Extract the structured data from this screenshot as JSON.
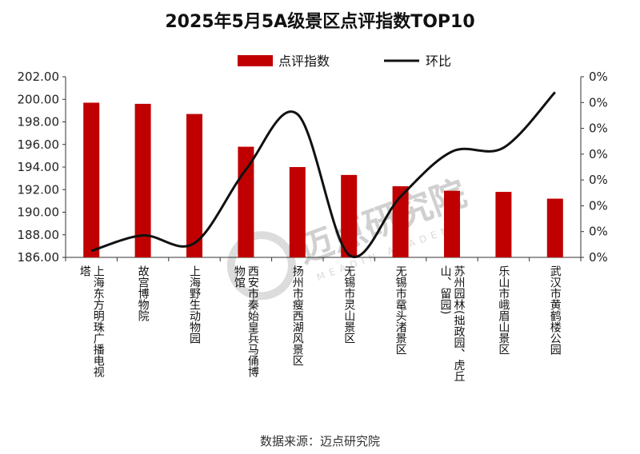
{
  "chart_data": {
    "type": "bar+line",
    "title": "2025年5月5A级景区点评指数TOP10",
    "legend": {
      "bar": "点评指数",
      "line": "环比"
    },
    "categories": [
      "上海东方明珠广播电视塔",
      "故宫博物院",
      "上海野生动物园",
      "西安市秦始皇兵马俑博物馆",
      "扬州市瘦西湖风景区",
      "无锡市灵山景区",
      "无锡市鼋头渚景区",
      "苏州园林(拙政园、虎丘山、留园)",
      "乐山市峨眉山景区",
      "武汉市黄鹤楼公园"
    ],
    "category_lines": [
      [
        "上海东方明珠广播电视",
        "塔"
      ],
      [
        "故宫博物院"
      ],
      [
        "上海野生动物园"
      ],
      [
        "西安市秦始皇兵马俑博",
        "物馆"
      ],
      [
        "扬州市瘦西湖风景区"
      ],
      [
        "无锡市灵山景区"
      ],
      [
        "无锡市鼋头渚景区"
      ],
      [
        "苏州园林(拙政园、虎丘",
        "山、留园)"
      ],
      [
        "乐山市峨眉山景区"
      ],
      [
        "武汉市黄鹤楼公园"
      ]
    ],
    "series": [
      {
        "name": "点评指数",
        "type": "bar",
        "axis": "left",
        "color": "#c00000",
        "values": [
          199.7,
          199.6,
          198.7,
          195.8,
          194.0,
          193.3,
          192.3,
          191.9,
          191.8,
          191.2
        ]
      },
      {
        "name": "环比",
        "type": "line",
        "axis": "right",
        "color": "#111111",
        "values": [
          0.0055,
          0.0067,
          0.0061,
          0.0118,
          0.0161,
          0.0052,
          0.0097,
          0.0132,
          0.0135,
          0.0178
        ]
      }
    ],
    "y_left": {
      "min": 186,
      "max": 202,
      "step": 2,
      "tick_labels": [
        "186.00",
        "188.00",
        "190.00",
        "192.00",
        "194.00",
        "196.00",
        "198.00",
        "200.00",
        "202.00"
      ]
    },
    "y_right": {
      "min": 0.005,
      "max": 0.019,
      "step": 0.002,
      "tick_labels": [
        "0%",
        "0%",
        "0%",
        "0%",
        "0%",
        "0%",
        "0%",
        "0%"
      ]
    },
    "grid": false,
    "legend_position": "top-center"
  },
  "source": "数据来源：迈点研究院",
  "watermark": {
    "text": "迈点研究院",
    "sub": "MEADIN ACADEMY",
    "color": "#d0d0d0"
  }
}
